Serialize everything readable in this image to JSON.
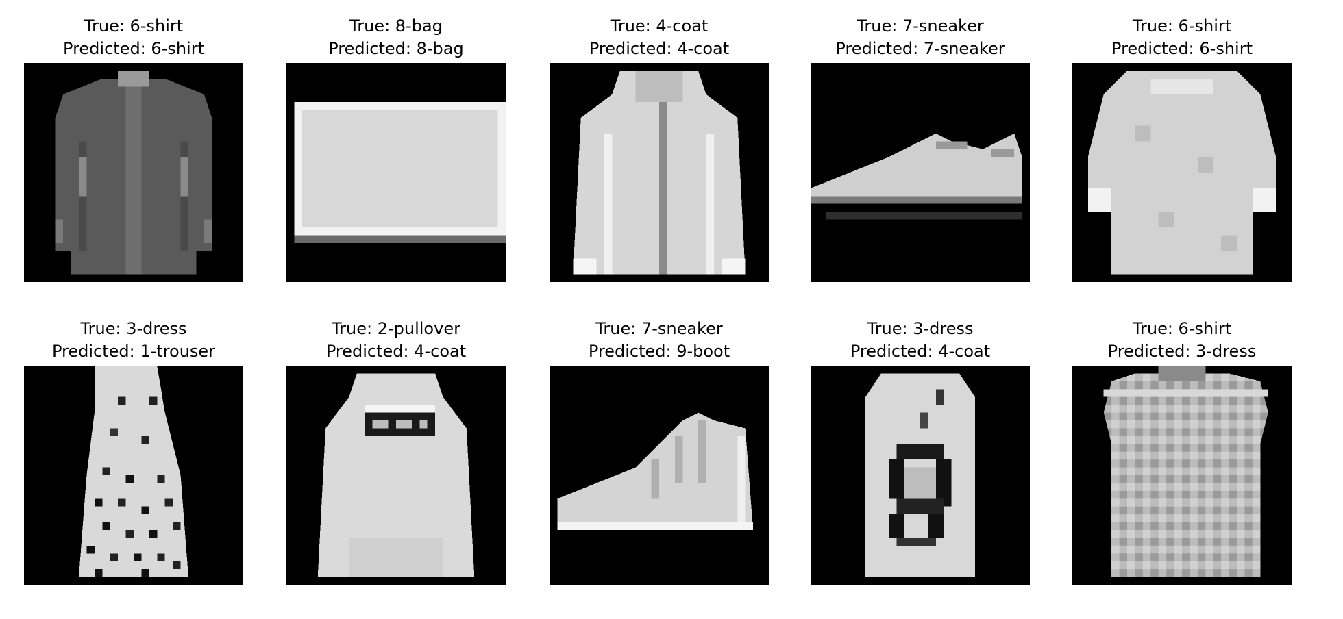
{
  "panels": [
    {
      "true_label": "True: 6-shirt",
      "predicted_label": "Predicted: 6-shirt",
      "image": "shirt-image"
    },
    {
      "true_label": "True: 8-bag",
      "predicted_label": "Predicted: 8-bag",
      "image": "bag-image"
    },
    {
      "true_label": "True: 4-coat",
      "predicted_label": "Predicted: 4-coat",
      "image": "coat-image"
    },
    {
      "true_label": "True: 7-sneaker",
      "predicted_label": "Predicted: 7-sneaker",
      "image": "sneaker-image"
    },
    {
      "true_label": "True: 6-shirt",
      "predicted_label": "Predicted: 6-shirt",
      "image": "tshirt-image"
    },
    {
      "true_label": "True: 3-dress",
      "predicted_label": "Predicted: 1-trouser",
      "image": "dress-image"
    },
    {
      "true_label": "True: 2-pullover",
      "predicted_label": "Predicted: 4-coat",
      "image": "pullover-image"
    },
    {
      "true_label": "True: 7-sneaker",
      "predicted_label": "Predicted: 9-boot",
      "image": "high-top-sneaker-image"
    },
    {
      "true_label": "True: 3-dress",
      "predicted_label": "Predicted: 4-coat",
      "image": "patterned-dress-image"
    },
    {
      "true_label": "True: 6-shirt",
      "predicted_label": "Predicted: 3-dress",
      "image": "textured-shirt-image"
    }
  ],
  "colors": {
    "background": "#ffffff",
    "image_background": "#000000",
    "text": "#000000"
  }
}
